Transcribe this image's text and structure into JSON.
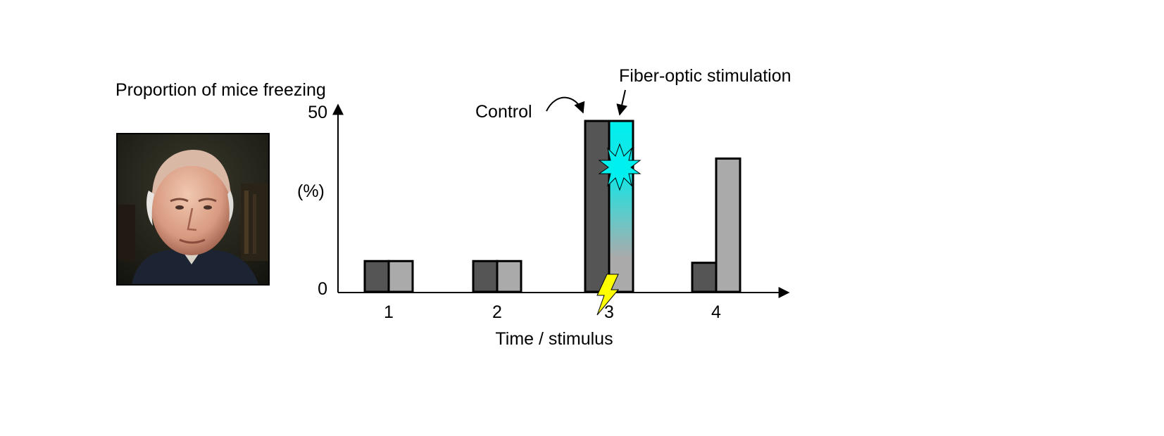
{
  "chart_data": {
    "type": "bar",
    "title": "",
    "ylabel": "Proportion of mice freezing",
    "ylabel_unit": "(%)",
    "xlabel": "Time / stimulus",
    "y_ticks": [
      "0",
      "50"
    ],
    "ylim": [
      0,
      50
    ],
    "categories": [
      "1",
      "2",
      "3",
      "4"
    ],
    "series": [
      {
        "name": "Control",
        "color": "#555555",
        "values": [
          9,
          9,
          50,
          8.5
        ]
      },
      {
        "name": "Fiber-optic stimulation",
        "color": "#aaaaaa",
        "values": [
          9,
          9,
          50,
          39
        ]
      }
    ],
    "annotations": {
      "control": "Control",
      "fiber": "Fiber-optic stimulation"
    },
    "highlight": {
      "category": "3",
      "series": "Fiber-optic stimulation",
      "gradient_color": "#00f0f0",
      "icons": [
        "starburst-icon",
        "lightning-icon"
      ]
    },
    "grid": false
  },
  "portrait": {
    "icon": "person-photo"
  }
}
